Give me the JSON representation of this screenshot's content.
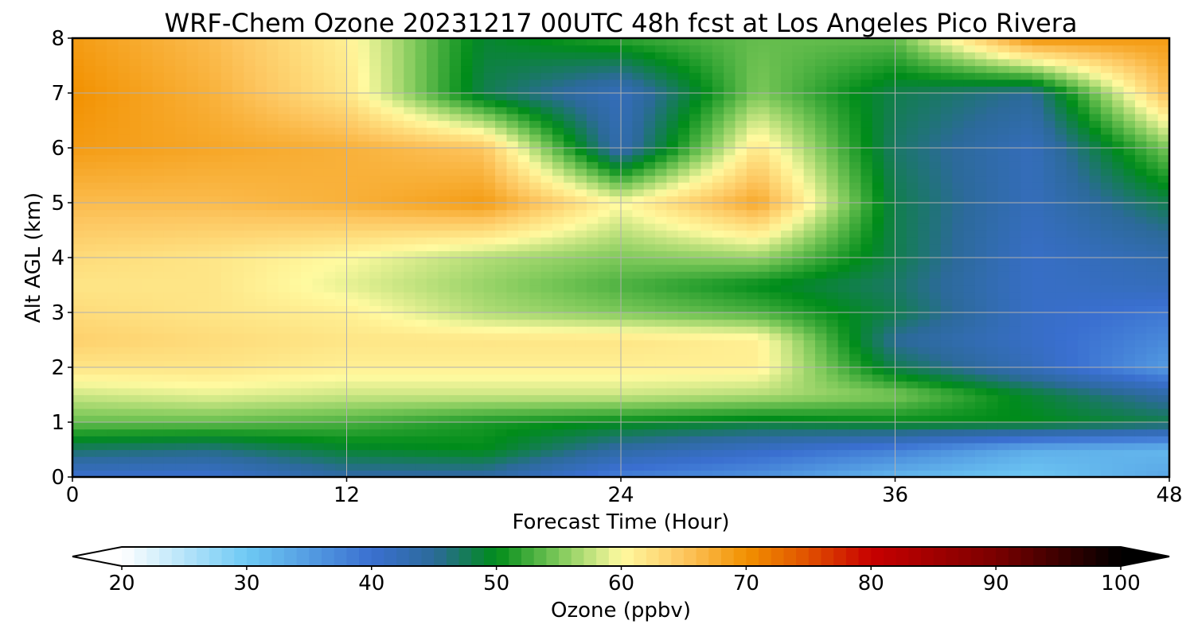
{
  "chart_data": {
    "type": "heatmap",
    "title": "WRF-Chem Ozone  20231217 00UTC 48h fcst at Los Angeles Pico Rivera",
    "xlabel": "Forecast Time (Hour)",
    "ylabel": "Alt AGL (km)",
    "xlim": [
      0,
      48
    ],
    "ylim": [
      0,
      8
    ],
    "xticks": [
      "0",
      "12",
      "24",
      "36",
      "48"
    ],
    "yticks": [
      "0",
      "1",
      "2",
      "3",
      "4",
      "5",
      "6",
      "7",
      "8"
    ],
    "grid": true,
    "x": [
      0,
      6,
      12,
      18,
      24,
      30,
      36,
      42,
      48
    ],
    "y": [
      0,
      0.5,
      1,
      1.5,
      2,
      2.5,
      3,
      3.5,
      4,
      5,
      6,
      7,
      8
    ],
    "z": [
      [
        40,
        40,
        44,
        44,
        38,
        36,
        32,
        30,
        34
      ],
      [
        47,
        46,
        49,
        50,
        44,
        41,
        38,
        33,
        32
      ],
      [
        54,
        54,
        53,
        51,
        50,
        49,
        50,
        50,
        48
      ],
      [
        58,
        59,
        58,
        58,
        58,
        57,
        55,
        49,
        44
      ],
      [
        62,
        62,
        61,
        61,
        61,
        61,
        48,
        42,
        35
      ],
      [
        64,
        63,
        62,
        62,
        62,
        61,
        45,
        41,
        37
      ],
      [
        63,
        62,
        61,
        57,
        55,
        53,
        48,
        41,
        39
      ],
      [
        62,
        62,
        59,
        56,
        53,
        50,
        47,
        41,
        42
      ],
      [
        63,
        62,
        60,
        57,
        55,
        56,
        48,
        41,
        43
      ],
      [
        66,
        66,
        67,
        69,
        60,
        68,
        48,
        42,
        48
      ],
      [
        69,
        68,
        67,
        65,
        43,
        62,
        47,
        42,
        55
      ],
      [
        70,
        67,
        62,
        48,
        42,
        55,
        48,
        45,
        66
      ],
      [
        69,
        66,
        61,
        49,
        52,
        54,
        54,
        70,
        69
      ]
    ],
    "colorbar": {
      "label": "Ozone  (ppbv)",
      "min": 20,
      "max": 100,
      "ticks": [
        "20",
        "30",
        "40",
        "50",
        "60",
        "70",
        "80",
        "90",
        "100"
      ],
      "extend": "both",
      "stops": [
        {
          "v": 20,
          "c": "#ffffff"
        },
        {
          "v": 30,
          "c": "#6ec9f4"
        },
        {
          "v": 40,
          "c": "#3a6fd0"
        },
        {
          "v": 45,
          "c": "#2c6a9a"
        },
        {
          "v": 50,
          "c": "#008c1a"
        },
        {
          "v": 55,
          "c": "#7ec95a"
        },
        {
          "v": 60,
          "c": "#fffaa0"
        },
        {
          "v": 65,
          "c": "#fdc660"
        },
        {
          "v": 70,
          "c": "#f29100"
        },
        {
          "v": 75,
          "c": "#e05000"
        },
        {
          "v": 80,
          "c": "#c80000"
        },
        {
          "v": 90,
          "c": "#7a0000"
        },
        {
          "v": 100,
          "c": "#000000"
        }
      ]
    }
  }
}
